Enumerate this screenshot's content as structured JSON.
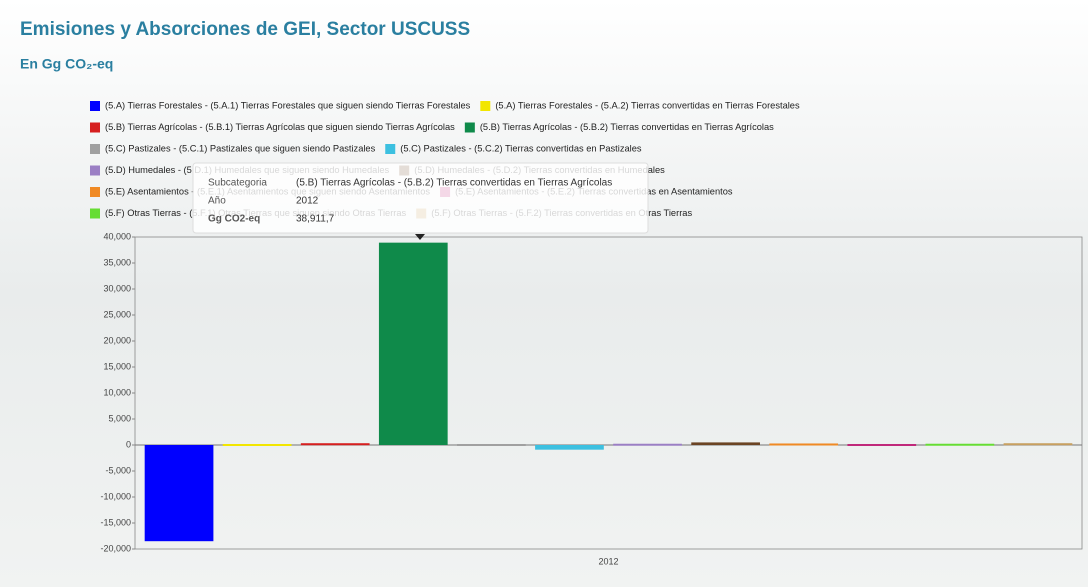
{
  "chart_data": {
    "type": "bar",
    "title": "Emisiones y Absorciones de GEI, Sector USCUSS",
    "subtitle": "En Gg CO₂-eq",
    "categories": [
      "2012"
    ],
    "series": [
      {
        "name": "(5.A) Tierras Forestales - (5.A.1) Tierras Forestales que siguen siendo Tierras Forestales",
        "color": "#0000ff",
        "values": [
          -18500
        ]
      },
      {
        "name": "(5.A) Tierras Forestales - (5.A.2) Tierras convertidas en Tierras Forestales",
        "color": "#f2e600",
        "values": [
          -300
        ]
      },
      {
        "name": "(5.B) Tierras Agrícolas - (5.B.1) Tierras Agrícolas que siguen siendo Tierras Agrícolas",
        "color": "#d61f1f",
        "values": [
          150
        ]
      },
      {
        "name": "(5.B) Tierras Agrícolas - (5.B.2) Tierras convertidas en Tierras Agrícolas",
        "color": "#0f8a4a",
        "values": [
          38911.7
        ]
      },
      {
        "name": "(5.C) Pastizales - (5.C.1) Pastizales que siguen siendo Pastizales",
        "color": "#a0a0a0",
        "values": [
          0
        ]
      },
      {
        "name": "(5.C) Pastizales - (5.C.2) Tierras convertidas en Pastizales",
        "color": "#3cc0e0",
        "values": [
          -900
        ]
      },
      {
        "name": "(5.D) Humedales - (5.D.1) Humedales que siguen siendo Humedales",
        "color": "#9b7fc4",
        "values": [
          50
        ]
      },
      {
        "name": "(5.D) Humedales - (5.D.2) Tierras convertidas en Humedales",
        "color": "#6b4423",
        "values": [
          500
        ]
      },
      {
        "name": "(5.E) Asentamientos - (5.E.1) Asentamientos que siguen siendo Asentamientos",
        "color": "#f08a24",
        "values": [
          100
        ]
      },
      {
        "name": "(5.E) Asentamientos - (5.E.2) Tierras convertidas en Asentamientos",
        "color": "#c0287a",
        "values": [
          -150
        ]
      },
      {
        "name": "(5.F) Otras Tierras - (5.F.1) Otras Tierras que siguen siendo Otras Tierras",
        "color": "#66dd33",
        "values": [
          50
        ]
      },
      {
        "name": "(5.F) Otras Tierras - (5.F.2) Tierras convertidas en Otras Tierras",
        "color": "#c8a060",
        "values": [
          150
        ]
      }
    ],
    "ylim": [
      -20000,
      40000
    ],
    "yticks": [
      {
        "value": -20000,
        "label": "-20,000"
      },
      {
        "value": -15000,
        "label": "-15,000"
      },
      {
        "value": -10000,
        "label": "-10,000"
      },
      {
        "value": -5000,
        "label": "-5,000"
      },
      0,
      {
        "value": 5000,
        "label": "5,000"
      },
      {
        "value": 10000,
        "label": "10,000"
      },
      {
        "value": 15000,
        "label": "15,000"
      },
      {
        "value": 20000,
        "label": "20,000"
      },
      {
        "value": 25000,
        "label": "25,000"
      },
      {
        "value": 30000,
        "label": "30,000"
      },
      {
        "value": 35000,
        "label": "35,000"
      },
      {
        "value": 40000,
        "label": "40,000"
      }
    ],
    "tooltip": {
      "rows": [
        [
          "Subcategoria",
          "(5.B) Tierras Agrícolas - (5.B.2) Tierras convertidas en Tierras Agrícolas"
        ],
        [
          "Año",
          "2012"
        ],
        [
          "Gg CO2-eq",
          "38,911,7"
        ]
      ]
    }
  }
}
